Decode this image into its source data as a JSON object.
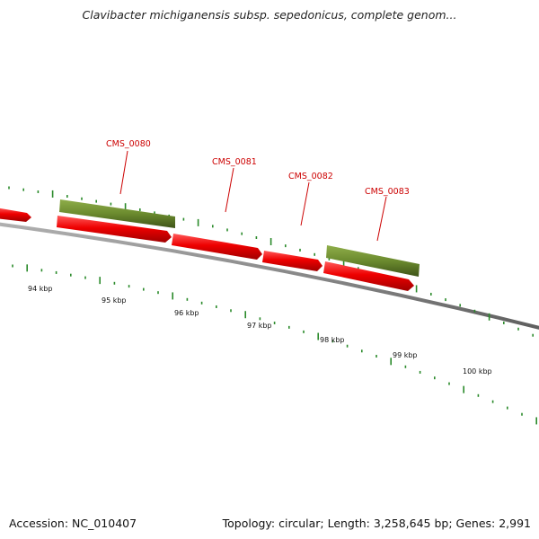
{
  "title": "Clavibacter michiganensis subsp. sepedonicus, complete genom...",
  "ruler_labels": [
    "94 kbp",
    "95 kbp",
    "96 kbp",
    "97 kbp",
    "98 kbp",
    "99 kbp",
    "100 kbp"
  ],
  "gene_labels": [
    "CMS_0080",
    "CMS_0081",
    "CMS_0082",
    "CMS_0083"
  ],
  "footer": {
    "accession": "Accession: NC_010407",
    "summary": "Topology: circular; Length: 3,258,645 bp; Genes: 2,991"
  },
  "colors": {
    "forward_gene": "#e80000",
    "rna_feature": "#6b8a2e",
    "tick": "#2a8a2a",
    "backbone": "#808080",
    "label": "#cc0000"
  }
}
